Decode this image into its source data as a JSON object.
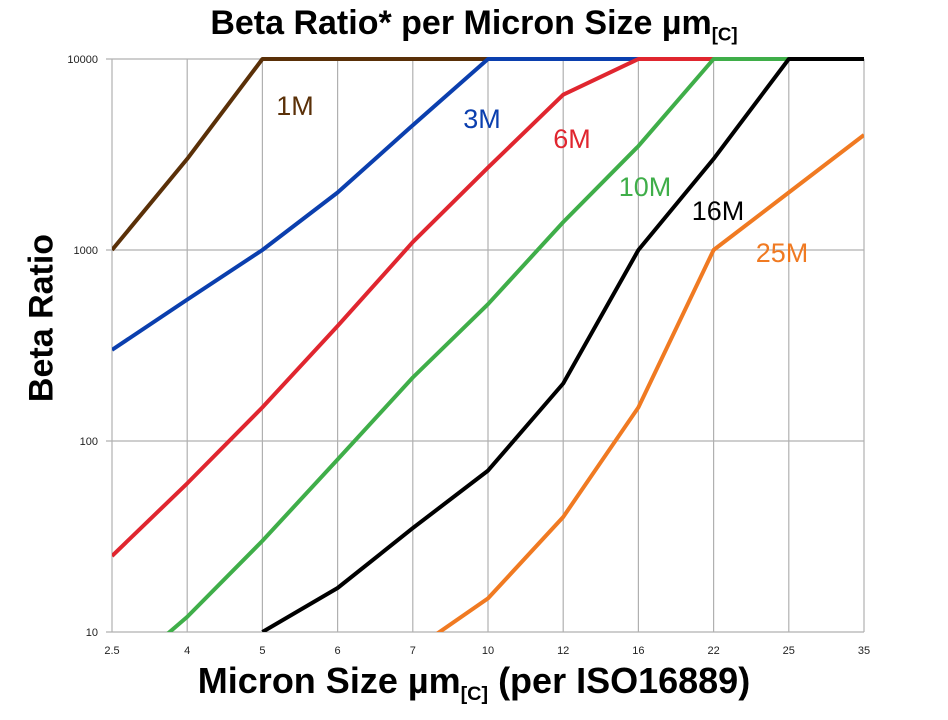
{
  "chart_data": {
    "type": "line",
    "title": "Beta Ratio* per Micron Size µm",
    "title_subscript": "[C]",
    "xlabel": "Micron Size µm",
    "xlabel_subscript": "[C]",
    "xlabel_suffix": " (per ISO16889)",
    "ylabel": "Beta Ratio",
    "categories": [
      "2.5",
      "4",
      "5",
      "6",
      "7",
      "10",
      "12",
      "16",
      "22",
      "25",
      "35"
    ],
    "y_scale": "log",
    "ylim": [
      10,
      10000
    ],
    "y_ticks": [
      "10000",
      "1000",
      "100",
      "10"
    ],
    "grid": true,
    "series": [
      {
        "name": "1M",
        "color": "#5a3008",
        "values": [
          1000,
          3000,
          10000,
          10000,
          10000,
          10000,
          10000,
          10000,
          10000,
          10000,
          10000
        ]
      },
      {
        "name": "3M",
        "color": "#0b3fae",
        "values": [
          300,
          550,
          1000,
          2000,
          4500,
          10000,
          10000,
          10000,
          10000,
          10000,
          10000
        ]
      },
      {
        "name": "6M",
        "color": "#e0262f",
        "values": [
          25,
          60,
          150,
          400,
          1100,
          2700,
          6500,
          10000,
          10000,
          10000,
          10000
        ]
      },
      {
        "name": "10M",
        "color": "#3fae49",
        "values": [
          5.5,
          12,
          30,
          80,
          215,
          520,
          1400,
          3500,
          10000,
          10000,
          10000
        ]
      },
      {
        "name": "16M",
        "color": "#000000",
        "values": [
          null,
          null,
          10,
          17,
          35,
          70,
          200,
          1000,
          3000,
          10000,
          10000
        ]
      },
      {
        "name": "25M",
        "color": "#f07a22",
        "values": [
          null,
          null,
          null,
          null,
          8,
          15,
          40,
          150,
          1000,
          2000,
          4000
        ]
      }
    ]
  }
}
